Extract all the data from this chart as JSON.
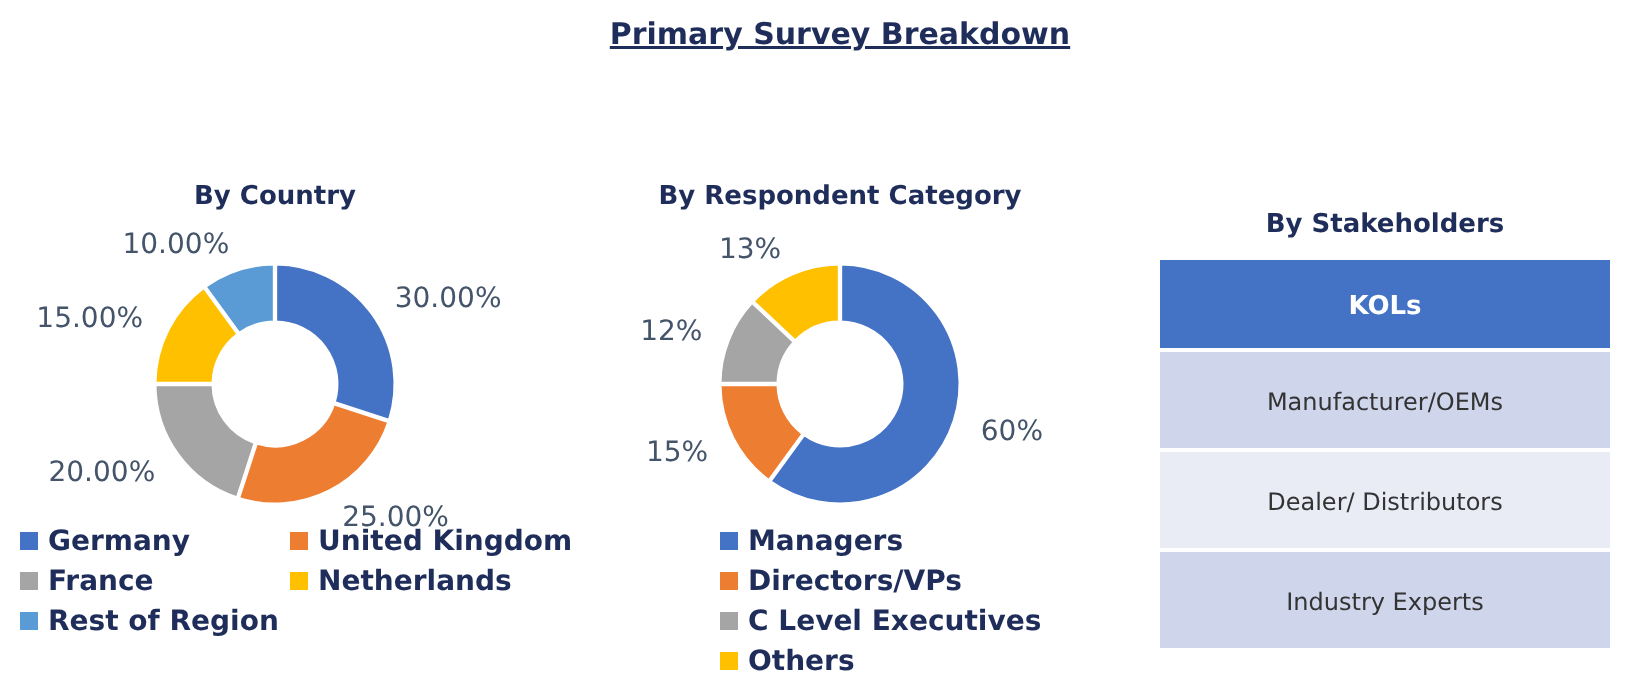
{
  "chart_data": [
    {
      "type": "donut",
      "subtitle": "By Country",
      "categories": [
        "Germany",
        "United Kingdom",
        "France",
        "Netherlands",
        "Rest of Region"
      ],
      "values": [
        30,
        25,
        20,
        15,
        10
      ],
      "colors": [
        "#4472c4",
        "#ed7d31",
        "#a5a5a5",
        "#ffc000",
        "#5b9bd5"
      ],
      "value_labels": [
        "30.00%",
        "25.00%",
        "20.00%",
        "15.00%",
        "10.00%"
      ],
      "legend": "bottom"
    },
    {
      "type": "donut",
      "title": "Primary Survey Breakdown",
      "subtitle": "By Respondent Category",
      "categories": [
        "Managers",
        "Directors/VPs",
        "C Level Executives",
        "Others"
      ],
      "values": [
        60,
        15,
        12,
        13
      ],
      "colors": [
        "#4472c4",
        "#ed7d31",
        "#a5a5a5",
        "#ffc000"
      ],
      "value_labels": [
        "60%",
        "15%",
        "12%",
        "13%"
      ],
      "legend": "bottom"
    },
    {
      "type": "other",
      "subtitle": "By Stakeholders",
      "xlabel": "KOLs",
      "categories": [
        "Manufacturer/OEMs",
        "Dealer/ Distributors",
        "Industry Experts"
      ]
    }
  ]
}
